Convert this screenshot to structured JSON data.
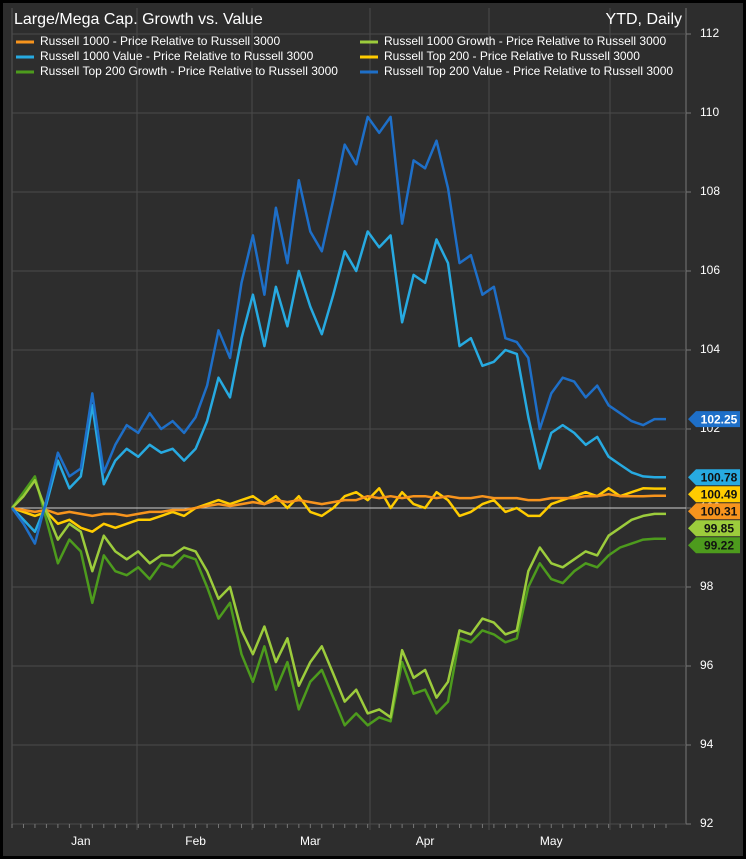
{
  "chart_data": {
    "type": "line",
    "title": "Large/Mega Cap. Growth vs. Value",
    "subtitle": "YTD, Daily",
    "categories": [
      null,
      null,
      null,
      null,
      null,
      null,
      "Jan",
      null,
      null,
      null,
      null,
      null,
      null,
      null,
      null,
      null,
      "Feb",
      null,
      null,
      null,
      null,
      null,
      null,
      null,
      null,
      null,
      "Mar",
      null,
      null,
      null,
      null,
      null,
      null,
      null,
      null,
      null,
      "Apr",
      null,
      null,
      null,
      null,
      null,
      null,
      null,
      null,
      null,
      null,
      "May",
      null,
      null,
      null,
      null,
      null,
      null,
      null,
      null,
      null,
      null
    ],
    "ylim": [
      92,
      112
    ],
    "yticks": [
      92,
      94,
      96,
      98,
      100,
      102,
      104,
      106,
      108,
      110,
      112
    ],
    "grid": true,
    "series": [
      {
        "name": "Russell 1000 - Price Relative to Russell 3000",
        "color": "#f7941d",
        "values": [
          100,
          99.95,
          99.9,
          99.95,
          99.85,
          99.9,
          99.85,
          99.8,
          99.85,
          99.85,
          99.8,
          99.85,
          99.9,
          99.9,
          99.95,
          99.95,
          100.0,
          100.05,
          100.1,
          100.05,
          100.1,
          100.15,
          100.1,
          100.2,
          100.15,
          100.2,
          100.15,
          100.1,
          100.15,
          100.2,
          100.2,
          100.3,
          100.25,
          100.3,
          100.25,
          100.3,
          100.3,
          100.25,
          100.3,
          100.25,
          100.25,
          100.3,
          100.25,
          100.25,
          100.25,
          100.2,
          100.2,
          100.25,
          100.25,
          100.25,
          100.3,
          100.3,
          100.35,
          100.3,
          100.3,
          100.3,
          100.31,
          100.31
        ]
      },
      {
        "name": "Russell 1000 Growth - Price Relative to Russell 3000",
        "color": "#9ccc3c",
        "values": [
          100,
          100.3,
          100.7,
          99.9,
          99.2,
          99.6,
          99.4,
          98.4,
          99.3,
          98.9,
          98.7,
          98.9,
          98.6,
          98.8,
          98.8,
          99.0,
          98.9,
          98.4,
          97.7,
          98.0,
          96.9,
          96.3,
          97.0,
          96.1,
          96.7,
          95.5,
          96.1,
          96.5,
          95.8,
          95.1,
          95.4,
          94.8,
          94.9,
          94.7,
          96.4,
          95.7,
          95.9,
          95.2,
          95.6,
          96.9,
          96.8,
          97.2,
          97.1,
          96.8,
          96.9,
          98.4,
          99.0,
          98.6,
          98.5,
          98.7,
          98.9,
          98.8,
          99.3,
          99.5,
          99.7,
          99.8,
          99.85,
          99.85
        ]
      },
      {
        "name": "Russell 1000 Value - Price Relative to Russell 3000",
        "color": "#27aae1",
        "values": [
          100,
          99.7,
          99.4,
          100.1,
          101.2,
          100.5,
          100.8,
          102.6,
          100.6,
          101.2,
          101.5,
          101.3,
          101.6,
          101.4,
          101.5,
          101.2,
          101.5,
          102.2,
          103.3,
          102.8,
          104.3,
          105.4,
          104.1,
          105.6,
          104.6,
          106.0,
          105.1,
          104.4,
          105.4,
          106.5,
          106.0,
          107.0,
          106.6,
          106.9,
          104.7,
          105.9,
          105.7,
          106.8,
          106.2,
          104.1,
          104.3,
          103.6,
          103.7,
          104.0,
          103.9,
          102.3,
          101.0,
          101.9,
          102.1,
          101.9,
          101.6,
          101.8,
          101.3,
          101.1,
          100.9,
          100.8,
          100.78,
          100.78
        ]
      },
      {
        "name": "Russell Top 200 - Price Relative to Russell 3000",
        "color": "#ffcc00",
        "values": [
          100,
          99.9,
          99.8,
          99.9,
          99.6,
          99.7,
          99.5,
          99.4,
          99.6,
          99.5,
          99.6,
          99.7,
          99.7,
          99.8,
          99.9,
          99.8,
          100.0,
          100.1,
          100.2,
          100.1,
          100.2,
          100.3,
          100.1,
          100.3,
          100.0,
          100.3,
          99.9,
          99.8,
          100.0,
          100.3,
          100.4,
          100.2,
          100.5,
          100.0,
          100.4,
          100.1,
          100.0,
          100.4,
          100.2,
          99.8,
          99.9,
          100.1,
          100.2,
          99.9,
          100.0,
          99.8,
          99.8,
          100.1,
          100.2,
          100.3,
          100.4,
          100.3,
          100.5,
          100.3,
          100.4,
          100.5,
          100.49,
          100.49
        ]
      },
      {
        "name": "Russell Top 200 Growth - Price Relative to Russell 3000",
        "color": "#4d9b1d",
        "values": [
          100,
          100.4,
          100.8,
          99.7,
          98.6,
          99.2,
          98.9,
          97.6,
          98.8,
          98.4,
          98.3,
          98.5,
          98.2,
          98.6,
          98.5,
          98.8,
          98.7,
          98.0,
          97.2,
          97.6,
          96.3,
          95.6,
          96.5,
          95.4,
          96.1,
          94.9,
          95.6,
          95.9,
          95.2,
          94.5,
          94.8,
          94.5,
          94.7,
          94.6,
          96.1,
          95.3,
          95.4,
          94.8,
          95.1,
          96.7,
          96.6,
          96.9,
          96.8,
          96.6,
          96.7,
          98.0,
          98.6,
          98.2,
          98.1,
          98.4,
          98.6,
          98.5,
          98.8,
          99.0,
          99.1,
          99.2,
          99.22,
          99.22
        ]
      },
      {
        "name": "Russell Top 200 Value - Price Relative to Russell 3000",
        "color": "#1e6fc8",
        "values": [
          100,
          99.6,
          99.1,
          100.2,
          101.4,
          100.8,
          101.0,
          102.9,
          100.9,
          101.6,
          102.1,
          101.9,
          102.4,
          102.0,
          102.2,
          101.9,
          102.3,
          103.1,
          104.5,
          103.8,
          105.7,
          106.9,
          105.4,
          107.6,
          106.2,
          108.3,
          107.0,
          106.5,
          107.8,
          109.2,
          108.7,
          109.9,
          109.5,
          109.9,
          107.2,
          108.8,
          108.6,
          109.3,
          108.1,
          106.2,
          106.4,
          105.4,
          105.6,
          104.3,
          104.2,
          103.8,
          102.0,
          102.9,
          103.3,
          103.2,
          102.8,
          103.1,
          102.6,
          102.4,
          102.2,
          102.1,
          102.25,
          102.25
        ]
      }
    ]
  }
}
